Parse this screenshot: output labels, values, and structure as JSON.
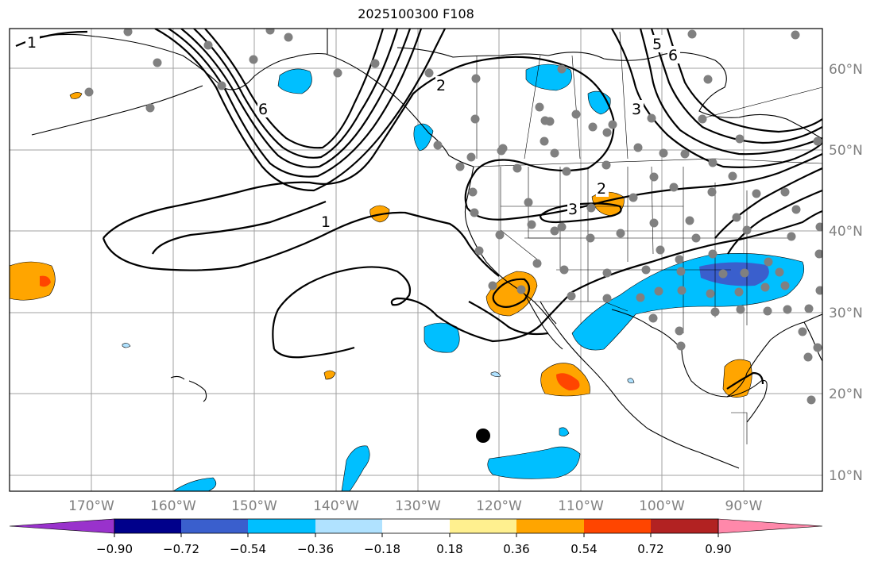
{
  "title": "2025100300 F108",
  "lat_labels": [
    "60°N",
    "50°N",
    "40°N",
    "30°N",
    "20°N",
    "10°N"
  ],
  "lon_labels": [
    "170°W",
    "160°W",
    "150°W",
    "140°W",
    "130°W",
    "120°W",
    "110°W",
    "100°W",
    "90°W"
  ],
  "contour_labels": [
    "1",
    "2",
    "3",
    "5",
    "6"
  ],
  "colorbar": {
    "ticks": [
      "−0.90",
      "−0.72",
      "−0.54",
      "−0.36",
      "−0.18",
      "0.18",
      "0.36",
      "0.54",
      "0.72",
      "0.90"
    ],
    "colors": [
      "#9932cc",
      "#00008b",
      "#3a5fcd",
      "#00bfff",
      "#b0e2ff",
      "#ffffff",
      "#fff08f",
      "#ffa500",
      "#ff4500",
      "#b22222",
      "#ff88aa"
    ]
  }
}
